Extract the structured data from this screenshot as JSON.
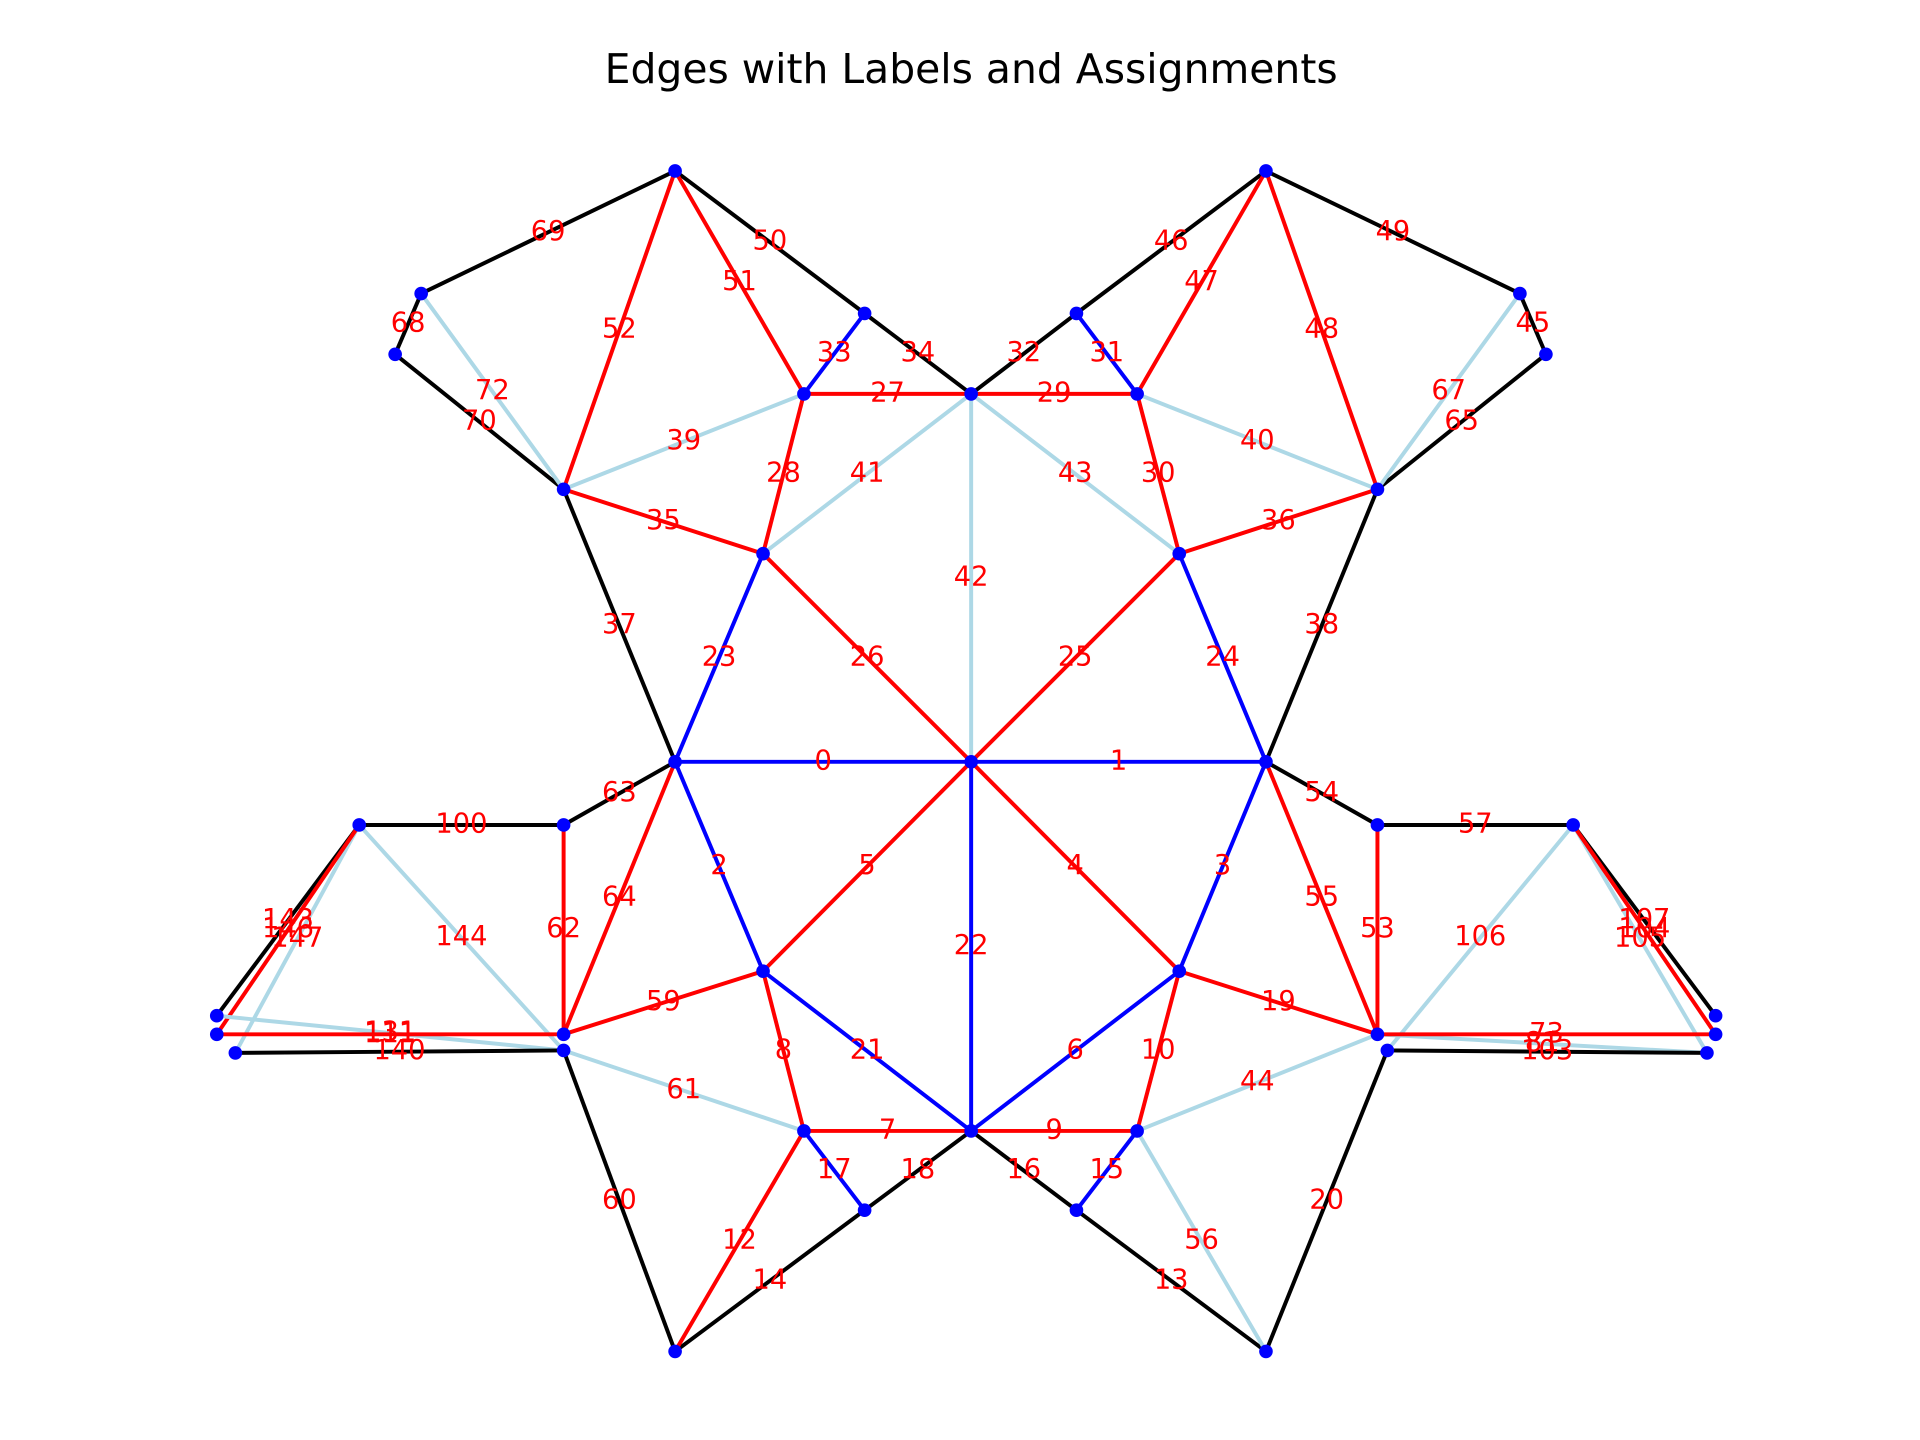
{
  "title": "Edges with Labels and Assignments",
  "edges": [
    {
      "label": "0",
      "color": "blue"
    },
    {
      "label": "1",
      "color": "blue"
    },
    {
      "label": "2",
      "color": "blue"
    },
    {
      "label": "3",
      "color": "blue"
    },
    {
      "label": "4",
      "color": "red"
    },
    {
      "label": "5",
      "color": "red"
    },
    {
      "label": "6",
      "color": "blue"
    },
    {
      "label": "21",
      "color": "blue"
    },
    {
      "label": "22",
      "color": "blue"
    },
    {
      "label": "7",
      "color": "red"
    },
    {
      "label": "9",
      "color": "red"
    },
    {
      "label": "8",
      "color": "red"
    },
    {
      "label": "10",
      "color": "red"
    },
    {
      "label": "17",
      "color": "blue"
    },
    {
      "label": "15",
      "color": "blue"
    },
    {
      "label": "18",
      "color": "black"
    },
    {
      "label": "16",
      "color": "black"
    },
    {
      "label": "14",
      "color": "black"
    },
    {
      "label": "13",
      "color": "black"
    },
    {
      "label": "12",
      "color": "red"
    },
    {
      "label": "56",
      "color": "#add8e6"
    },
    {
      "label": "20",
      "color": "black"
    },
    {
      "label": "60",
      "color": "black"
    },
    {
      "label": "61",
      "color": "#add8e6"
    },
    {
      "label": "44",
      "color": "#add8e6"
    },
    {
      "label": "19",
      "color": "red"
    },
    {
      "label": "59",
      "color": "red"
    },
    {
      "label": "23",
      "color": "blue"
    },
    {
      "label": "24",
      "color": "blue"
    },
    {
      "label": "25",
      "color": "red"
    },
    {
      "label": "26",
      "color": "red"
    },
    {
      "label": "42",
      "color": "#add8e6"
    },
    {
      "label": "41",
      "color": "#add8e6"
    },
    {
      "label": "43",
      "color": "#add8e6"
    },
    {
      "label": "27",
      "color": "red"
    },
    {
      "label": "29",
      "color": "red"
    },
    {
      "label": "28",
      "color": "red"
    },
    {
      "label": "30",
      "color": "red"
    },
    {
      "label": "33",
      "color": "blue"
    },
    {
      "label": "31",
      "color": "blue"
    },
    {
      "label": "34",
      "color": "black"
    },
    {
      "label": "32",
      "color": "black"
    },
    {
      "label": "50",
      "color": "black"
    },
    {
      "label": "46",
      "color": "black"
    },
    {
      "label": "51",
      "color": "red"
    },
    {
      "label": "47",
      "color": "red"
    },
    {
      "label": "52",
      "color": "red"
    },
    {
      "label": "48",
      "color": "red"
    },
    {
      "label": "69",
      "color": "black"
    },
    {
      "label": "49",
      "color": "black"
    },
    {
      "label": "68",
      "color": "black"
    },
    {
      "label": "45",
      "color": "black"
    },
    {
      "label": "70",
      "color": "black"
    },
    {
      "label": "65",
      "color": "black"
    },
    {
      "label": "72",
      "color": "#add8e6"
    },
    {
      "label": "67",
      "color": "#add8e6"
    },
    {
      "label": "39",
      "color": "#add8e6"
    },
    {
      "label": "40",
      "color": "#add8e6"
    },
    {
      "label": "35",
      "color": "red"
    },
    {
      "label": "36",
      "color": "red"
    },
    {
      "label": "37",
      "color": "black"
    },
    {
      "label": "38",
      "color": "black"
    },
    {
      "label": "63",
      "color": "black"
    },
    {
      "label": "54",
      "color": "black"
    },
    {
      "label": "64",
      "color": "red"
    },
    {
      "label": "55",
      "color": "red"
    },
    {
      "label": "62",
      "color": "red"
    },
    {
      "label": "53",
      "color": "red"
    },
    {
      "label": "100",
      "color": "black"
    },
    {
      "label": "57",
      "color": "black"
    },
    {
      "label": "144",
      "color": "#add8e6"
    },
    {
      "label": "106",
      "color": "#add8e6"
    },
    {
      "label": "147",
      "color": "#add8e6"
    },
    {
      "label": "143",
      "color": "black"
    },
    {
      "label": "146",
      "color": "red"
    },
    {
      "label": "131",
      "color": "#add8e6"
    },
    {
      "label": "111",
      "color": "red"
    },
    {
      "label": "140",
      "color": "black"
    },
    {
      "label": "105",
      "color": "#add8e6"
    },
    {
      "label": "107",
      "color": "black"
    },
    {
      "label": "104",
      "color": "red"
    },
    {
      "label": "81",
      "color": "#add8e6"
    },
    {
      "label": "73",
      "color": "red"
    },
    {
      "label": "103",
      "color": "black"
    }
  ]
}
